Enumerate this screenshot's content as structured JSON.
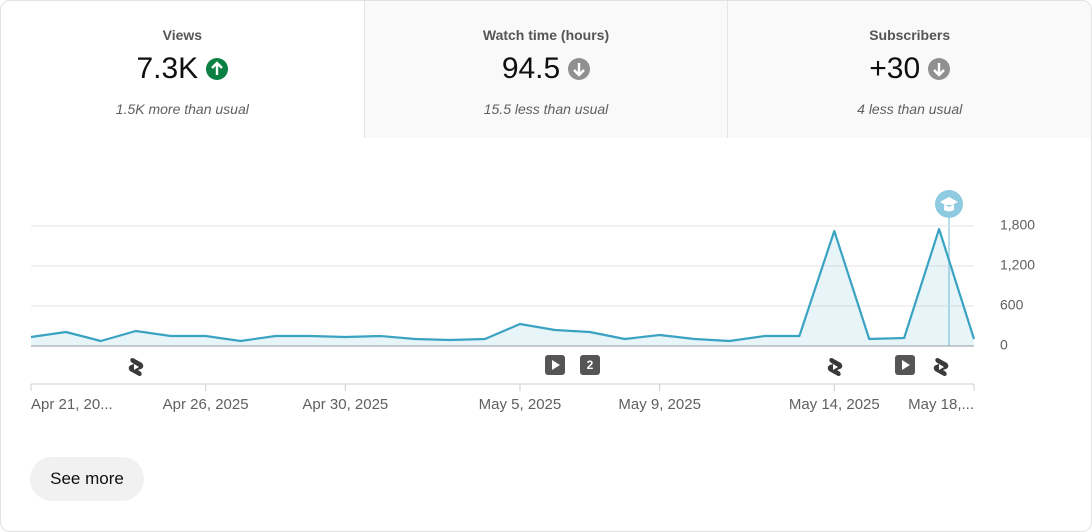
{
  "tabs": [
    {
      "label": "Views",
      "value": "7.3K",
      "trend": "up",
      "note": "1.5K more than usual",
      "selected": true
    },
    {
      "label": "Watch time (hours)",
      "value": "94.5",
      "trend": "down",
      "note": "15.5 less than usual",
      "selected": false
    },
    {
      "label": "Subscribers",
      "value": "+30",
      "trend": "down",
      "note": "4 less than usual",
      "selected": false
    }
  ],
  "chart_data": {
    "type": "line",
    "categories": [
      "Apr 21, 20...",
      null,
      null,
      null,
      null,
      "Apr 26, 2025",
      null,
      null,
      null,
      "Apr 30, 2025",
      null,
      null,
      null,
      null,
      "May 5, 2025",
      null,
      null,
      null,
      "May 9, 2025",
      null,
      null,
      null,
      null,
      "May 14, 2025",
      null,
      null,
      null,
      "May 18,..."
    ],
    "series": [
      {
        "name": "Views",
        "color": "#3aa3c2",
        "values": [
          135,
          210,
          75,
          225,
          150,
          150,
          75,
          150,
          150,
          135,
          150,
          105,
          90,
          105,
          330,
          240,
          210,
          105,
          165,
          105,
          75,
          150,
          150,
          1725,
          105,
          120,
          1755,
          105
        ]
      }
    ],
    "ylim": [
      0,
      1800
    ],
    "yticks": [
      0,
      600,
      {
        "value": 1200,
        "label": "1,200"
      },
      {
        "value": 1800,
        "label": "1,800"
      }
    ],
    "grid": true,
    "annotations": [
      "2"
    ]
  },
  "button": "See more"
}
